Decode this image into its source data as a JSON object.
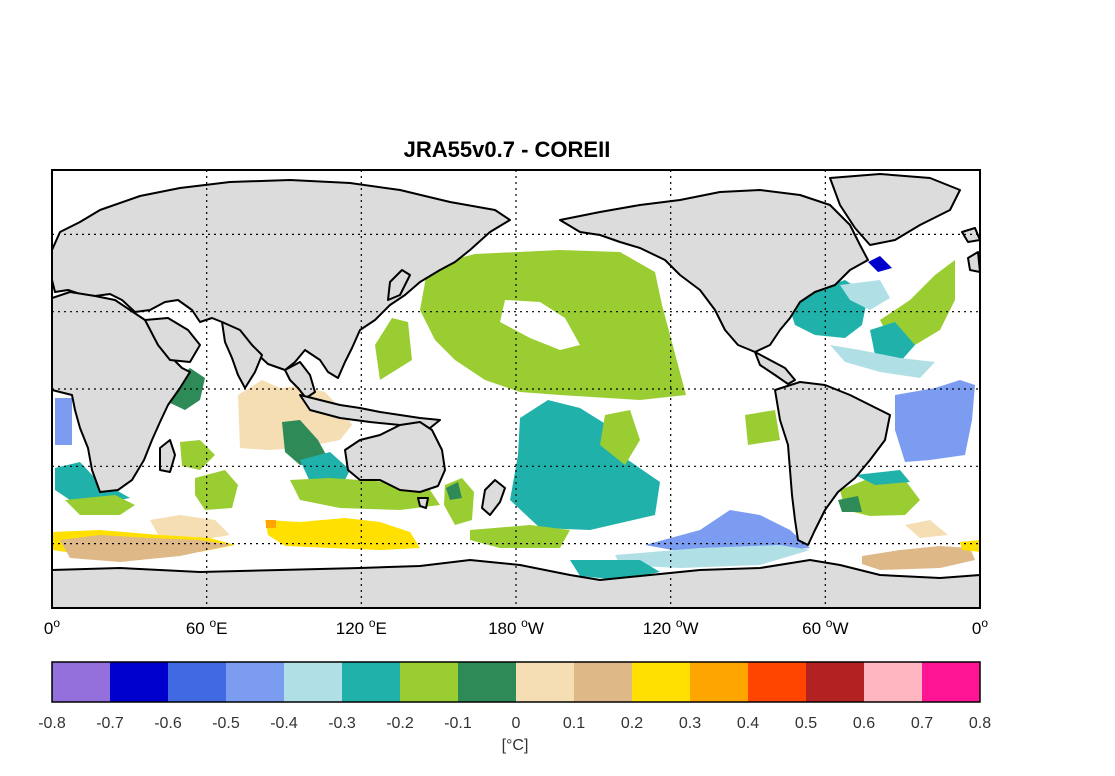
{
  "chart_data": {
    "type": "map",
    "title": "JRA55v0.7 - COREII",
    "projection": "equirectangular, 0 to 360 longitude, -80 to 90 latitude",
    "x_ticks": [
      {
        "main": "0",
        "sup": "o",
        "suffix": ""
      },
      {
        "main": "60 ",
        "sup": "o",
        "suffix": "E"
      },
      {
        "main": "120 ",
        "sup": "o",
        "suffix": "E"
      },
      {
        "main": "180 ",
        "sup": "o",
        "suffix": "W"
      },
      {
        "main": "120 ",
        "sup": "o",
        "suffix": "W"
      },
      {
        "main": "60 ",
        "sup": "o",
        "suffix": "W"
      },
      {
        "main": "0",
        "sup": "o",
        "suffix": ""
      }
    ],
    "grid": true,
    "land_color": "#dcdcdc",
    "colorbar": {
      "unit": "[°C]",
      "tick_labels": [
        "-0.8",
        "-0.7",
        "-0.6",
        "-0.5",
        "-0.4",
        "-0.3",
        "-0.2",
        "-0.1",
        "0",
        "0.1",
        "0.2",
        "0.3",
        "0.4",
        "0.5",
        "0.6",
        "0.7",
        "0.8"
      ],
      "colors": [
        "#9370db",
        "#0000cd",
        "#4169e1",
        "#7b9cf0",
        "#b0e0e6",
        "#20b2aa",
        "#9acd32",
        "#2e8b57",
        "#f5deb3",
        "#deb887",
        "#ffe000",
        "#ffa500",
        "#ff4500",
        "#b22222",
        "#ffb6c1",
        "#ff1493"
      ]
    },
    "anomaly_regions": [
      {
        "value": -0.2,
        "color": "#9acd32",
        "area": "North Pacific"
      },
      {
        "value": -0.3,
        "color": "#20b2aa",
        "area": "South Pacific"
      },
      {
        "value": -0.3,
        "color": "#20b2aa",
        "area": "Gulf Stream region"
      },
      {
        "value": -0.2,
        "color": "#9acd32",
        "area": "North Atlantic"
      },
      {
        "value": -0.5,
        "color": "#7b9cf0",
        "area": "Tropical South Atlantic"
      },
      {
        "value": -0.1,
        "color": "#2e8b57",
        "area": "Southeast Indian Ocean"
      },
      {
        "value": 0.0,
        "color": "#f5deb3",
        "area": "Tropical Indian Ocean"
      },
      {
        "value": 0.2,
        "color": "#ffe000",
        "area": "Southern Ocean (Indian sector)"
      },
      {
        "value": 0.1,
        "color": "#deb887",
        "area": "Southern Ocean (Atlantic sector)"
      },
      {
        "value": -0.4,
        "color": "#b0e0e6",
        "area": "Southern Ocean (Pacific sector)"
      },
      {
        "value": -0.7,
        "color": "#0000cd",
        "area": "Labrador coast"
      }
    ]
  }
}
